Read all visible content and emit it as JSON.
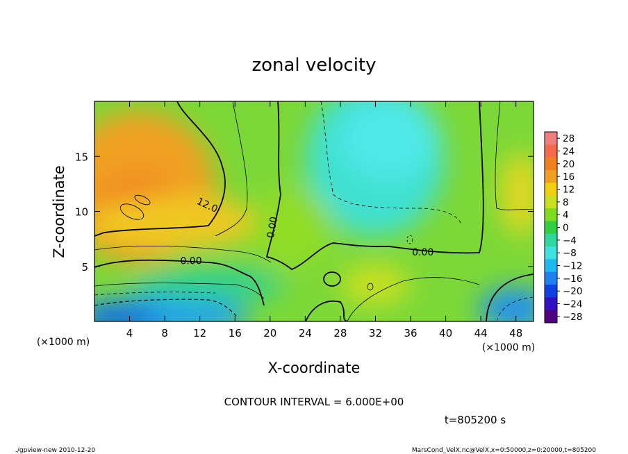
{
  "chart_data": {
    "type": "heatmap",
    "title": "zonal velocity",
    "xlabel": "X-coordinate",
    "ylabel": "Z-coordinate",
    "x_unit": "(×1000 m)",
    "z_unit": "(×1000 m)",
    "xlim": [
      0,
      50
    ],
    "zlim": [
      0,
      20
    ],
    "x_ticks": [
      "4",
      "8",
      "12",
      "16",
      "20",
      "24",
      "28",
      "32",
      "36",
      "40",
      "44",
      "48"
    ],
    "x_tick_values": [
      4,
      8,
      12,
      16,
      20,
      24,
      28,
      32,
      36,
      40,
      44,
      48
    ],
    "z_ticks": [
      "5",
      "10",
      "15"
    ],
    "z_tick_values": [
      5,
      10,
      15
    ],
    "contour_interval": "CONTOUR INTERVAL = 6.000E+00",
    "time_label": "t=805200 s",
    "contour_labels": [
      {
        "text": "12.0",
        "x": 12.7,
        "z": 10.3
      },
      {
        "text": "0.00",
        "x": 11.0,
        "z": 5.2
      },
      {
        "text": "0.00",
        "x": 20.6,
        "z": 8.5
      },
      {
        "text": "0.00",
        "x": 37.4,
        "z": 6.0
      }
    ],
    "colorbar": {
      "levels": [
        28,
        24,
        20,
        16,
        12,
        8,
        4,
        0,
        -4,
        -8,
        -12,
        -16,
        -20,
        -24,
        -28
      ],
      "labels": [
        "28",
        "24",
        "20",
        "16",
        "12",
        "8",
        "4",
        "0",
        "−4",
        "−8",
        "−12",
        "−16",
        "−20",
        "−24",
        "−28"
      ],
      "colors": [
        "#f08080",
        "#f46a4a",
        "#f08020",
        "#f0a020",
        "#f0d010",
        "#c8e020",
        "#80dc20",
        "#30d040",
        "#30d8a0",
        "#40e0e0",
        "#20b8f0",
        "#2080f0",
        "#1040e0",
        "#3010c0",
        "#500080"
      ]
    },
    "grid": false,
    "field_description_regions": [
      {
        "region": "upper-left",
        "value": 18
      },
      {
        "region": "center",
        "value": 4
      },
      {
        "region": "upper-center-right",
        "value": -10
      },
      {
        "region": "bottom-left",
        "value": -18
      },
      {
        "region": "bottom-right",
        "value": -14
      },
      {
        "region": "far-right-mid",
        "value": 10
      }
    ]
  },
  "footer": {
    "left": "./gpview-new  2010-12-20",
    "right": "MarsCond_VelX.nc@VelX,x=0:50000,z=0:20000,t=805200"
  }
}
